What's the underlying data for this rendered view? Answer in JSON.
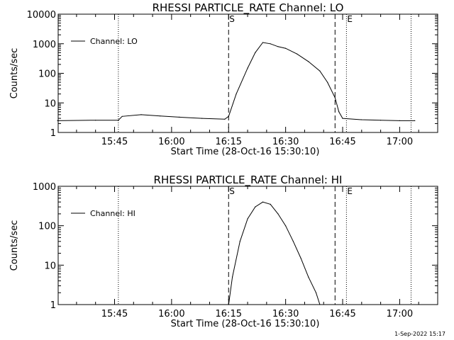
{
  "footer_timestamp": "1-Sep-2022 15:17",
  "chart_data": [
    {
      "type": "line",
      "title": "RHESSI PARTICLE_RATE Channel: LO",
      "xlabel": "Start Time (28-Oct-16 15:30:10)",
      "ylabel": "Counts/sec",
      "yscale": "log",
      "ylim": [
        1,
        10000
      ],
      "xlim": [
        "15:30:10",
        "17:10:00"
      ],
      "x_ticks": [
        "15:45",
        "16:00",
        "16:15",
        "16:30",
        "16:45",
        "17:00"
      ],
      "y_ticks": [
        "1",
        "10",
        "100",
        "1000",
        "10000"
      ],
      "markers": [
        {
          "label": "S",
          "time": "16:15",
          "style": "dashed"
        },
        {
          "label": "",
          "time": "16:43",
          "style": "dashed"
        },
        {
          "label": "E",
          "time": "16:46",
          "style": "dotted"
        }
      ],
      "dotted_lines": [
        "15:46",
        "17:03"
      ],
      "legend": {
        "position": "top-left",
        "entries": [
          "Channel: LO"
        ]
      },
      "series": [
        {
          "name": "Channel: LO",
          "x": [
            "15:30",
            "15:40",
            "15:46",
            "15:47",
            "15:52",
            "15:57",
            "16:02",
            "16:08",
            "16:14",
            "16:15",
            "16:17",
            "16:20",
            "16:22",
            "16:24",
            "16:26",
            "16:28",
            "16:30",
            "16:33",
            "16:36",
            "16:39",
            "16:41",
            "16:43",
            "16:44",
            "16:45",
            "16:50",
            "16:55",
            "17:00",
            "17:04"
          ],
          "y": [
            2.5,
            2.6,
            2.6,
            3.5,
            4.0,
            3.6,
            3.3,
            3.0,
            2.8,
            3.5,
            20,
            150,
            500,
            1100,
            1000,
            800,
            700,
            450,
            250,
            120,
            50,
            15,
            5,
            3,
            2.7,
            2.6,
            2.5,
            2.5
          ]
        }
      ]
    },
    {
      "type": "line",
      "title": "RHESSI PARTICLE_RATE Channel: HI",
      "xlabel": "Start Time (28-Oct-16 15:30:10)",
      "ylabel": "Counts/sec",
      "yscale": "log",
      "ylim": [
        1,
        1000
      ],
      "xlim": [
        "15:30:10",
        "17:10:00"
      ],
      "x_ticks": [
        "15:45",
        "16:00",
        "16:15",
        "16:30",
        "16:45",
        "17:00"
      ],
      "y_ticks": [
        "1",
        "10",
        "100",
        "1000"
      ],
      "markers": [
        {
          "label": "S",
          "time": "16:15",
          "style": "dashed"
        },
        {
          "label": "",
          "time": "16:43",
          "style": "dashed"
        },
        {
          "label": "E",
          "time": "16:46",
          "style": "dotted"
        }
      ],
      "dotted_lines": [
        "15:46",
        "17:03"
      ],
      "legend": {
        "position": "top-left",
        "entries": [
          "Channel: HI"
        ]
      },
      "series": [
        {
          "name": "Channel: HI",
          "x": [
            "16:15",
            "16:16",
            "16:18",
            "16:20",
            "16:22",
            "16:24",
            "16:26",
            "16:28",
            "16:30",
            "16:32",
            "16:34",
            "16:36",
            "16:38",
            "16:39"
          ],
          "y": [
            1.0,
            5,
            40,
            150,
            300,
            400,
            350,
            200,
            100,
            40,
            15,
            5,
            2,
            1.0
          ]
        }
      ]
    }
  ]
}
